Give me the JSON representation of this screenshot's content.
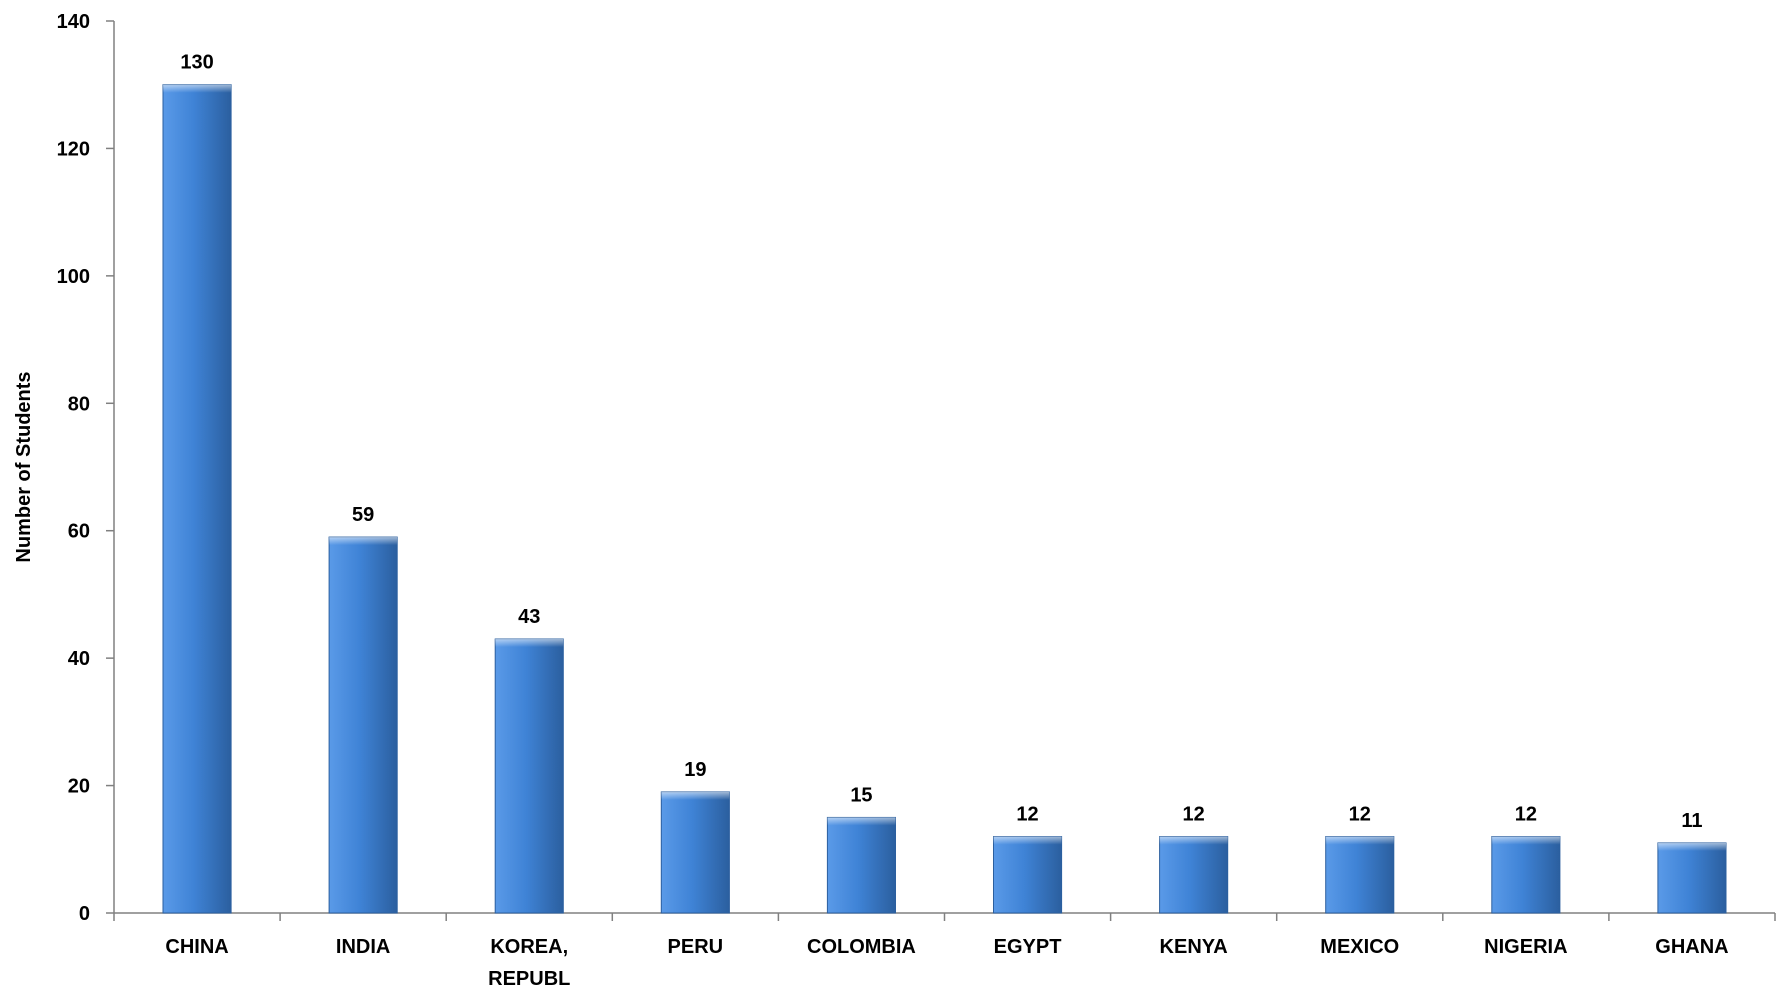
{
  "chart_data": {
    "type": "bar",
    "title": "",
    "xlabel": "",
    "ylabel": "Number of Students",
    "ylim": [
      0,
      140
    ],
    "yticks": [
      0,
      20,
      40,
      60,
      80,
      100,
      120,
      140
    ],
    "grid": false,
    "legend": "none",
    "categories": [
      [
        "CHINA"
      ],
      [
        "INDIA"
      ],
      [
        "KOREA,",
        "REPUBL"
      ],
      [
        "PERU"
      ],
      [
        "COLOMBIA"
      ],
      [
        "EGYPT"
      ],
      [
        "KENYA"
      ],
      [
        "MEXICO"
      ],
      [
        "NIGERIA"
      ],
      [
        "GHANA"
      ]
    ],
    "values": [
      130,
      59,
      43,
      19,
      15,
      12,
      12,
      12,
      12,
      11
    ],
    "data_labels": [
      "130",
      "59",
      "43",
      "19",
      "15",
      "12",
      "12",
      "12",
      "12",
      "11"
    ],
    "colors": {
      "bar_light": "#5a9ae8",
      "bar_mid": "#3f83d6",
      "bar_dark": "#2b5f9f",
      "axis": "#808080"
    }
  }
}
